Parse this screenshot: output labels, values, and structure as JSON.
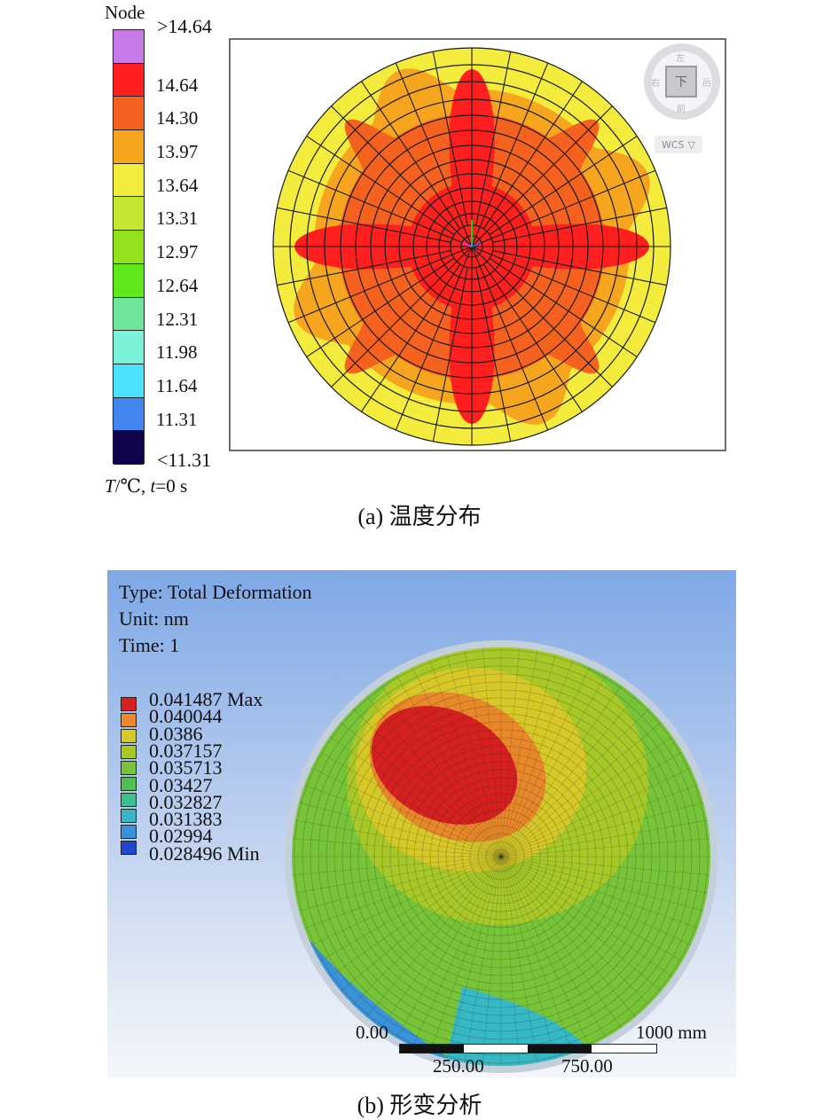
{
  "panel_a": {
    "legend_title": "Node",
    "legend_entries": [
      {
        "label": ">14.64",
        "color": "#c77be8"
      },
      {
        "label": "14.64",
        "color": "#ff1f1f"
      },
      {
        "label": "14.30",
        "color": "#f5621f"
      },
      {
        "label": "13.97",
        "color": "#f6a51f"
      },
      {
        "label": "13.64",
        "color": "#f3ec3c"
      },
      {
        "label": "13.31",
        "color": "#c5e632"
      },
      {
        "label": "12.97",
        "color": "#93e01e"
      },
      {
        "label": "12.64",
        "color": "#60e81c"
      },
      {
        "label": "12.31",
        "color": "#6ee79a"
      },
      {
        "label": "11.98",
        "color": "#7cf2d8"
      },
      {
        "label": "11.64",
        "color": "#4ee0ff"
      },
      {
        "label": "11.31",
        "color": "#4287ee"
      },
      {
        "label": "<11.31",
        "color": "#12044a"
      }
    ],
    "units_symbol": "T",
    "units_rest": "/℃, ",
    "time_symbol": "t",
    "time_rest": "=0 s",
    "view_cube": {
      "face_label": "下",
      "top": "左",
      "left": "右",
      "right": "后",
      "bottom": "前",
      "wcs_label": "WCS",
      "wcs_arrow": "▽"
    },
    "caption": "(a)  温度分布"
  },
  "panel_b": {
    "type_line": "Type: Total Deformation",
    "unit_line": "Unit: nm",
    "time_line": "Time: 1",
    "legend_entries": [
      {
        "label": "0.041487 Max",
        "color": "#d62020"
      },
      {
        "label": "0.040044",
        "color": "#e8882a"
      },
      {
        "label": "0.0386",
        "color": "#d6c828"
      },
      {
        "label": "0.037157",
        "color": "#a8c828"
      },
      {
        "label": "0.035713",
        "color": "#78c438"
      },
      {
        "label": "0.03427",
        "color": "#4cc050"
      },
      {
        "label": "0.032827",
        "color": "#3cc090"
      },
      {
        "label": "0.031383",
        "color": "#38b8c4"
      },
      {
        "label": "0.02994",
        "color": "#3a92d8"
      },
      {
        "label": "0.028496 Min",
        "color": "#2048cc"
      }
    ],
    "scale": {
      "label_0": "0.00",
      "label_250": "250.00",
      "label_750": "750.00",
      "label_1000": "1000 mm"
    },
    "caption": "(b)  形变分析"
  }
}
